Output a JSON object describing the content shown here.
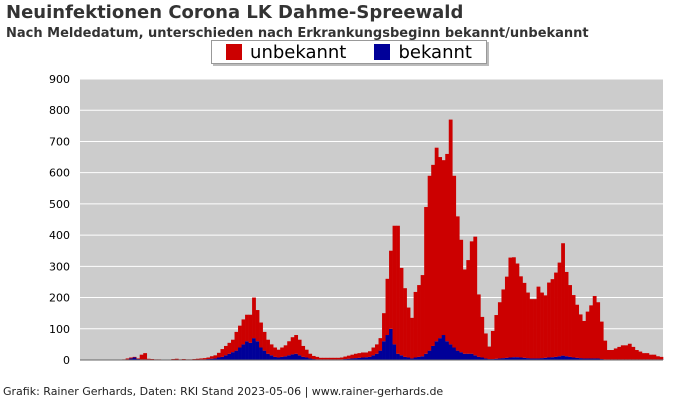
{
  "header": {
    "title": "Neuinfektionen Corona LK Dahme-Spreewald",
    "subtitle": "Nach Meldedatum, unterschieden nach Erkrankungsbeginn bekannt/unbekannt"
  },
  "footer": {
    "text": "Grafik: Rainer Gerhards, Daten: RKI Stand 2023-05-06 | www.rainer-gerhards.de"
  },
  "colors": {
    "unbekannt": "#cc0000",
    "bekannt": "#000099",
    "plot_bg": "#cccccc",
    "grid": "#ffffff"
  },
  "chart_data": {
    "type": "bar",
    "stacked": true,
    "title": "Neuinfektionen Corona LK Dahme-Spreewald",
    "subtitle": "Nach Meldedatum, unterschieden nach Erkrankungsbeginn bekannt/unbekannt",
    "ylim": [
      0,
      900
    ],
    "yticks": [
      0,
      100,
      200,
      300,
      400,
      500,
      600,
      700,
      800,
      900
    ],
    "legend_position": "top-center",
    "grid": true,
    "x_resolution": "weeks (approx., reported daily; estimated)",
    "series": [
      {
        "name": "unbekannt",
        "color": "#cc0000",
        "values": [
          0,
          0,
          0,
          0,
          0,
          0,
          0,
          0,
          0,
          0,
          0,
          0,
          2,
          3,
          3,
          2,
          2,
          15,
          20,
          2,
          2,
          1,
          1,
          1,
          0,
          0,
          2,
          3,
          1,
          2,
          1,
          1,
          2,
          3,
          3,
          4,
          5,
          8,
          10,
          15,
          25,
          30,
          35,
          40,
          60,
          70,
          80,
          85,
          90,
          130,
          100,
          80,
          60,
          45,
          35,
          30,
          25,
          30,
          35,
          45,
          55,
          60,
          50,
          35,
          25,
          15,
          10,
          8,
          5,
          5,
          5,
          5,
          5,
          5,
          6,
          8,
          10,
          12,
          14,
          15,
          16,
          15,
          18,
          25,
          30,
          40,
          90,
          180,
          250,
          380,
          410,
          280,
          220,
          160,
          130,
          210,
          230,
          260,
          470,
          560,
          580,
          620,
          580,
          560,
          600,
          720,
          550,
          430,
          360,
          270,
          300,
          360,
          380,
          200,
          130,
          80,
          40,
          90,
          140,
          180,
          220,
          260,
          320,
          320,
          300,
          260,
          240,
          210,
          190,
          190,
          230,
          210,
          200,
          240,
          250,
          270,
          300,
          360,
          270,
          230,
          200,
          170,
          140,
          120,
          150,
          170,
          200,
          180,
          120,
          60,
          30,
          30,
          35,
          40,
          45,
          45,
          50,
          40,
          30,
          25,
          20,
          20,
          15,
          15,
          10,
          8
        ]
      },
      {
        "name": "bekannt",
        "color": "#000099",
        "values": [
          0,
          0,
          0,
          0,
          0,
          0,
          0,
          0,
          0,
          0,
          0,
          0,
          0,
          2,
          5,
          8,
          3,
          2,
          2,
          2,
          1,
          1,
          1,
          0,
          0,
          0,
          1,
          1,
          1,
          1,
          1,
          1,
          1,
          1,
          2,
          2,
          3,
          4,
          5,
          8,
          10,
          15,
          20,
          25,
          30,
          40,
          50,
          60,
          55,
          70,
          60,
          40,
          30,
          20,
          15,
          10,
          8,
          10,
          12,
          15,
          18,
          20,
          15,
          10,
          8,
          5,
          3,
          2,
          2,
          2,
          2,
          2,
          2,
          2,
          2,
          3,
          4,
          5,
          6,
          7,
          8,
          9,
          10,
          15,
          20,
          30,
          60,
          80,
          100,
          50,
          20,
          15,
          10,
          8,
          5,
          8,
          10,
          12,
          20,
          30,
          45,
          60,
          70,
          80,
          60,
          50,
          40,
          30,
          25,
          20,
          20,
          20,
          15,
          10,
          8,
          5,
          3,
          3,
          4,
          5,
          6,
          7,
          8,
          9,
          9,
          8,
          7,
          6,
          5,
          5,
          5,
          6,
          7,
          8,
          9,
          10,
          12,
          14,
          12,
          10,
          8,
          7,
          6,
          5,
          5,
          5,
          5,
          5,
          3,
          2,
          2,
          2,
          2,
          2,
          2,
          2,
          2,
          2,
          2,
          2,
          2,
          2,
          2,
          2,
          2,
          2
        ]
      }
    ]
  }
}
